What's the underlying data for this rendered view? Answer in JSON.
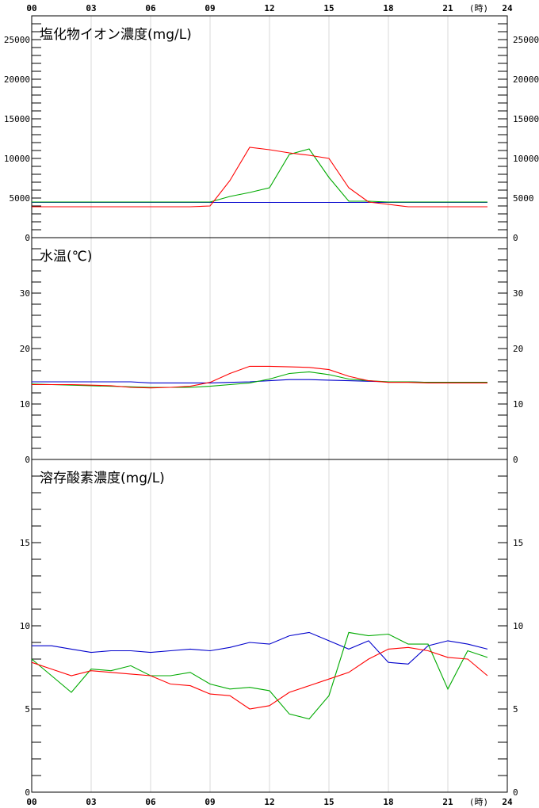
{
  "x_axis": {
    "ticks": [
      "00",
      "03",
      "06",
      "09",
      "12",
      "15",
      "18",
      "21",
      "24"
    ],
    "unit": "(時)"
  },
  "chart_data": [
    {
      "type": "line",
      "title": "塩化物イオン濃度(mg/L)",
      "ylim": [
        0,
        28000
      ],
      "y_ticks": [
        "0",
        "5000",
        "10000",
        "15000",
        "20000",
        "25000"
      ],
      "y_tick_values": [
        0,
        5000,
        10000,
        15000,
        20000,
        25000
      ],
      "x": [
        0,
        1,
        2,
        3,
        4,
        5,
        6,
        7,
        8,
        9,
        10,
        11,
        12,
        13,
        14,
        15,
        16,
        17,
        18,
        19,
        20,
        21,
        22,
        23
      ],
      "series": [
        {
          "color": "#0000cc",
          "values": [
            4450,
            4450,
            4450,
            4450,
            4450,
            4450,
            4450,
            4450,
            4450,
            4450,
            4450,
            4450,
            4450,
            4450,
            4450,
            4450,
            4450,
            4450,
            4450,
            4450,
            4450,
            4450,
            4450,
            4450
          ]
        },
        {
          "color": "#00aa00",
          "values": [
            4500,
            4500,
            4500,
            4500,
            4500,
            4500,
            4500,
            4500,
            4500,
            4500,
            5200,
            5700,
            6300,
            10500,
            11200,
            7600,
            4600,
            4600,
            4500,
            4500,
            4500,
            4500,
            4500,
            4500
          ]
        },
        {
          "color": "#ff0000",
          "values": [
            3900,
            3900,
            3900,
            3900,
            3900,
            3900,
            3900,
            3900,
            3900,
            4000,
            7200,
            11400,
            11100,
            10700,
            10400,
            10000,
            6300,
            4500,
            4200,
            3900,
            3900,
            3900,
            3900,
            3900
          ]
        }
      ]
    },
    {
      "type": "line",
      "title": "水温(℃)",
      "ylim": [
        0,
        40
      ],
      "y_ticks": [
        "0",
        "10",
        "20",
        "30"
      ],
      "y_tick_values": [
        0,
        10,
        20,
        30
      ],
      "x": [
        0,
        1,
        2,
        3,
        4,
        5,
        6,
        7,
        8,
        9,
        10,
        11,
        12,
        13,
        14,
        15,
        16,
        17,
        18,
        19,
        20,
        21,
        22,
        23
      ],
      "series": [
        {
          "color": "#0000cc",
          "values": [
            14.0,
            14.0,
            14.0,
            14.0,
            14.0,
            14.0,
            13.8,
            13.8,
            13.8,
            13.8,
            13.9,
            14.0,
            14.2,
            14.4,
            14.4,
            14.3,
            14.2,
            14.1,
            14.0,
            14.0,
            13.9,
            13.9,
            13.9,
            13.9
          ]
        },
        {
          "color": "#00aa00",
          "values": [
            13.6,
            13.5,
            13.4,
            13.3,
            13.2,
            13.1,
            13.0,
            13.0,
            13.0,
            13.2,
            13.5,
            13.8,
            14.5,
            15.5,
            15.8,
            15.3,
            14.5,
            14.2,
            14.0,
            14.0,
            13.9,
            13.9,
            13.9,
            13.9
          ]
        },
        {
          "color": "#ff0000",
          "values": [
            13.5,
            13.5,
            13.5,
            13.4,
            13.3,
            13.0,
            12.9,
            13.0,
            13.2,
            13.9,
            15.5,
            16.8,
            16.8,
            16.7,
            16.6,
            16.2,
            15.0,
            14.2,
            13.9,
            13.9,
            13.8,
            13.8,
            13.8,
            13.8
          ]
        }
      ]
    },
    {
      "type": "line",
      "title": "溶存酸素濃度(mg/L)",
      "ylim": [
        0,
        20
      ],
      "y_ticks": [
        "0",
        "5",
        "10",
        "15"
      ],
      "y_tick_values": [
        0,
        5,
        10,
        15
      ],
      "x": [
        0,
        1,
        2,
        3,
        4,
        5,
        6,
        7,
        8,
        9,
        10,
        11,
        12,
        13,
        14,
        15,
        16,
        17,
        18,
        19,
        20,
        21,
        22,
        23
      ],
      "series": [
        {
          "color": "#0000cc",
          "values": [
            8.8,
            8.8,
            8.6,
            8.4,
            8.5,
            8.5,
            8.4,
            8.5,
            8.6,
            8.5,
            8.7,
            9.0,
            8.9,
            9.4,
            9.6,
            9.1,
            8.6,
            9.1,
            7.8,
            7.7,
            8.8,
            9.1,
            8.9,
            8.6
          ]
        },
        {
          "color": "#00aa00",
          "values": [
            8.0,
            7.0,
            6.0,
            7.4,
            7.3,
            7.6,
            7.0,
            7.0,
            7.2,
            6.5,
            6.2,
            6.3,
            6.1,
            4.7,
            4.4,
            5.8,
            9.6,
            9.4,
            9.5,
            8.9,
            8.9,
            6.2,
            8.5,
            8.1
          ]
        },
        {
          "color": "#ff0000",
          "values": [
            7.8,
            7.4,
            7.0,
            7.3,
            7.2,
            7.1,
            7.0,
            6.5,
            6.4,
            5.9,
            5.8,
            5.0,
            5.2,
            6.0,
            6.4,
            6.8,
            7.2,
            8.0,
            8.6,
            8.7,
            8.5,
            8.1,
            8.0,
            7.0
          ]
        }
      ]
    }
  ]
}
